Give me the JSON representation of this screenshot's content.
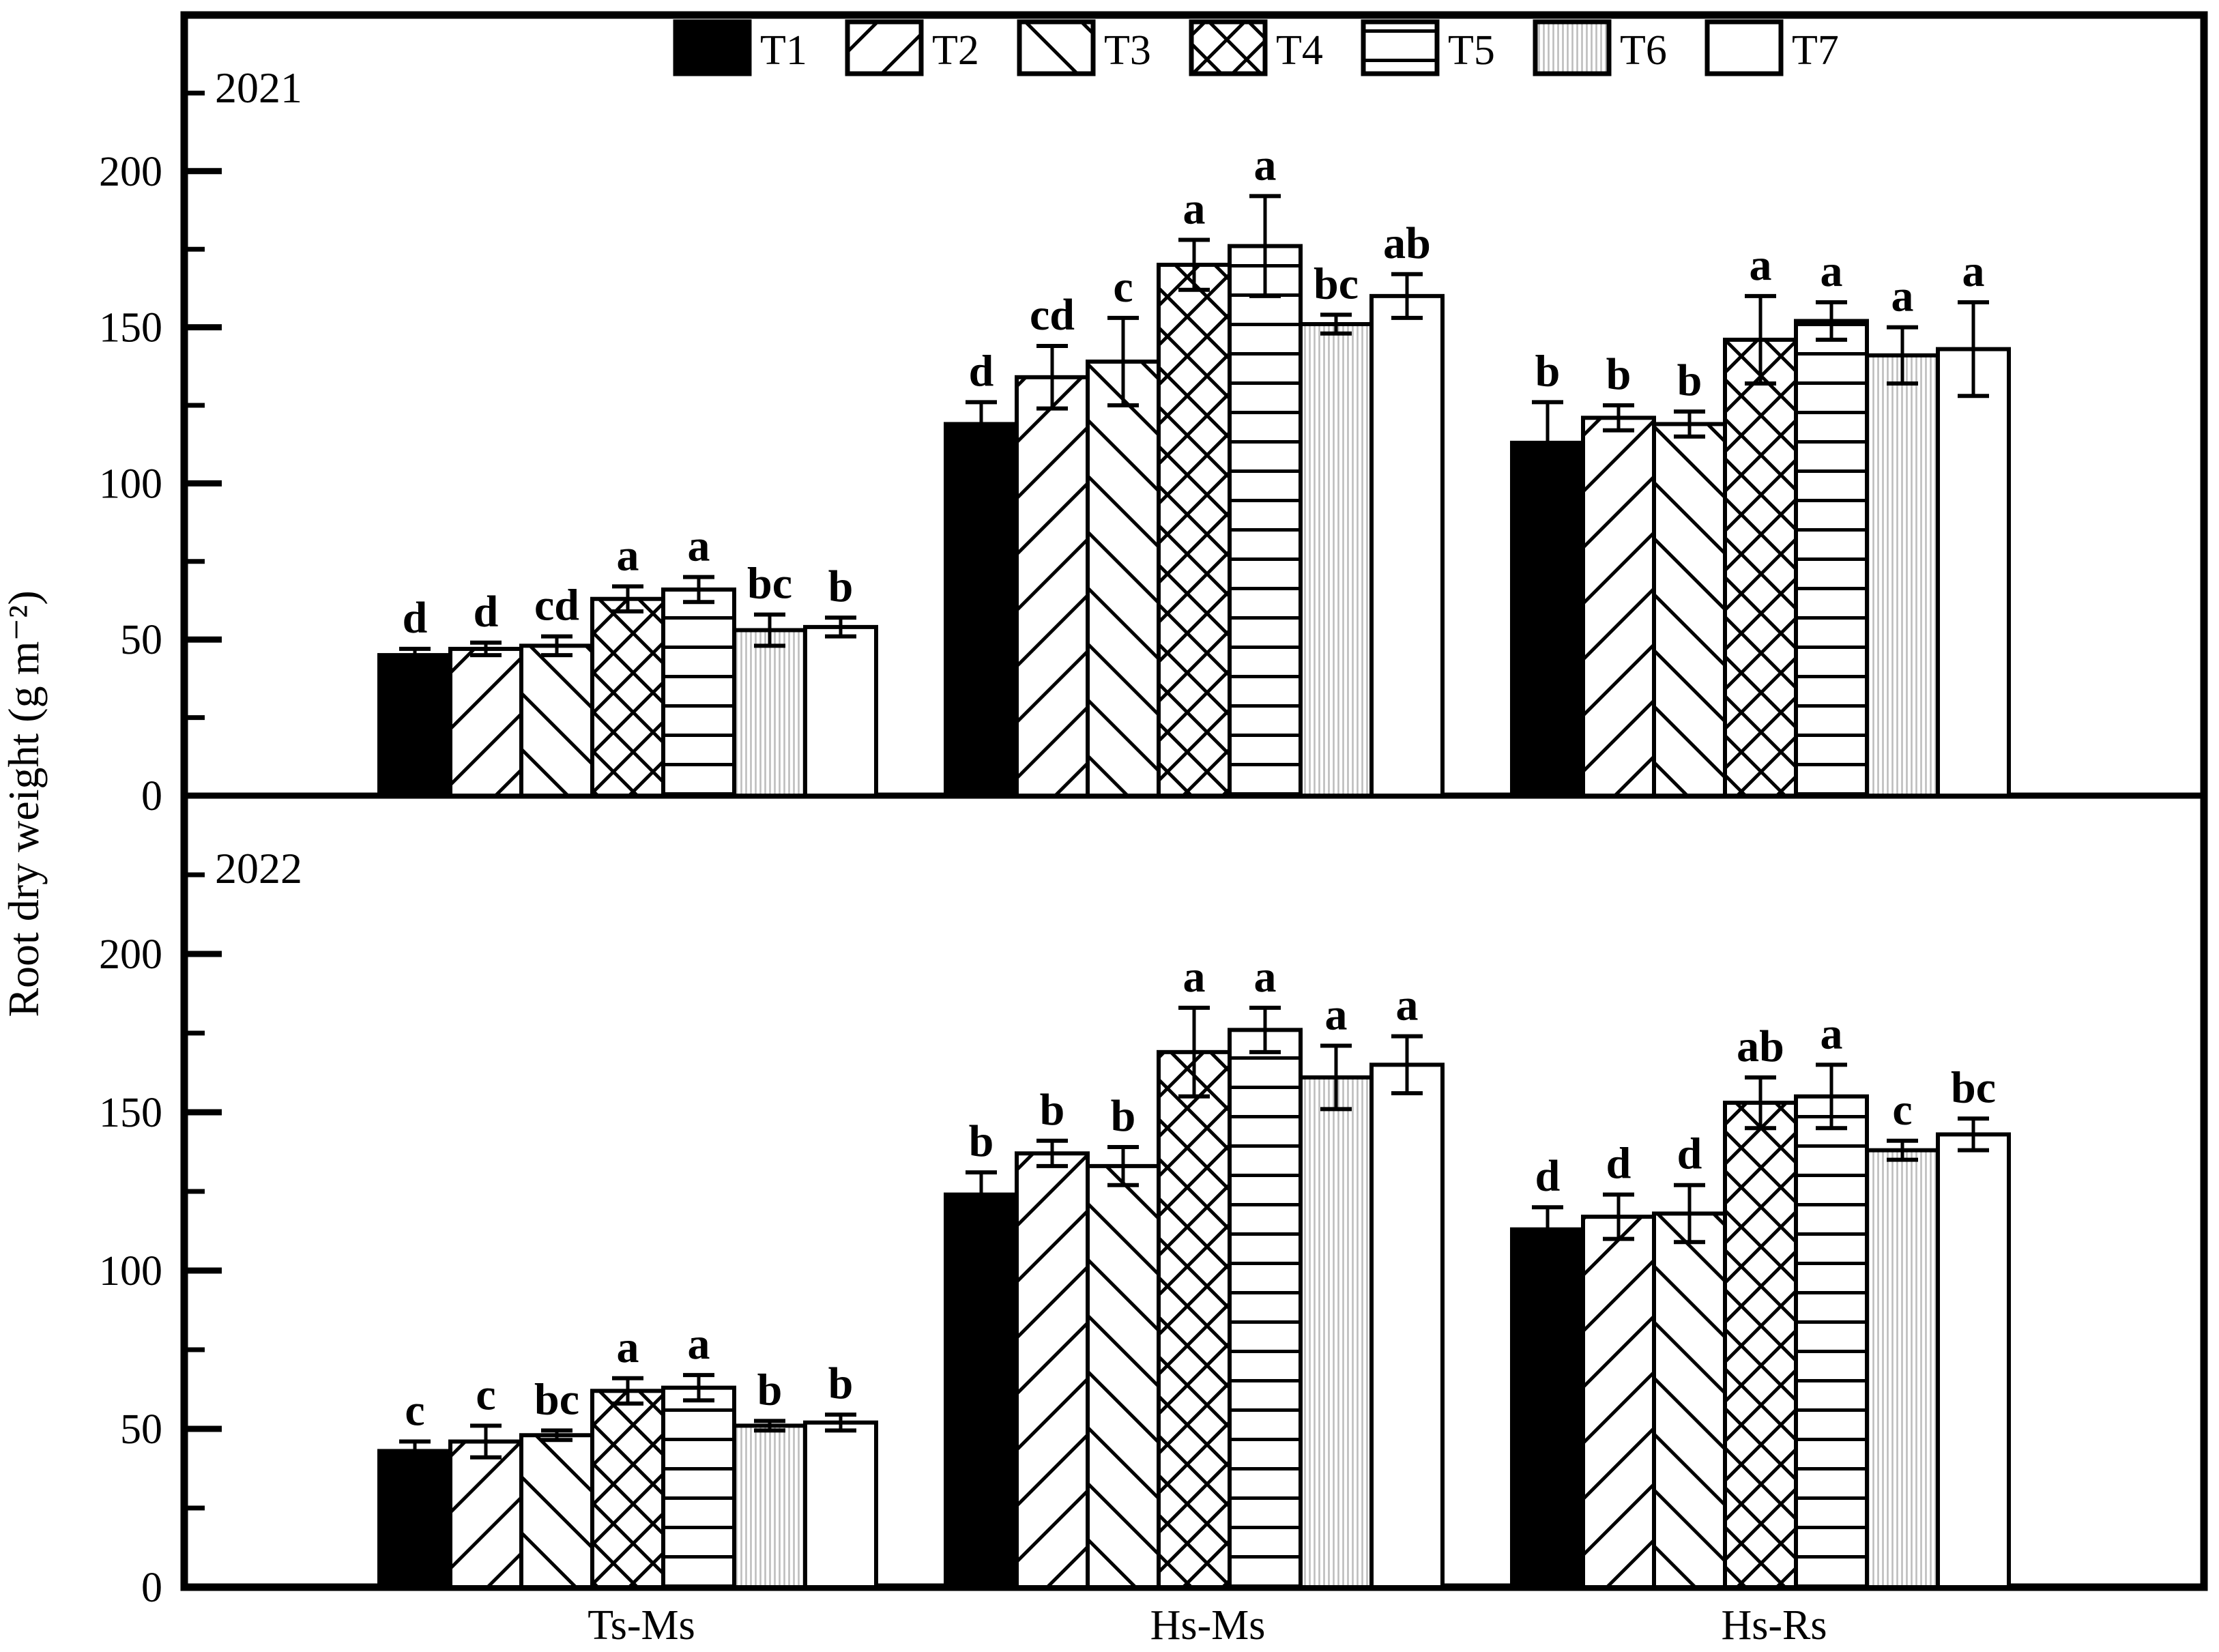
{
  "figure": {
    "ylabel": "Root dry weight (g m⁻²)",
    "panel_years": [
      "2021",
      "2022"
    ]
  },
  "chart_data": {
    "type": "bar",
    "title": "",
    "xlabel": "",
    "ylabel": "Root dry weight (g m⁻²)",
    "categories": [
      "Ts-Ms",
      "Hs-Ms",
      "Hs-Rs"
    ],
    "treatments": [
      "T1",
      "T2",
      "T3",
      "T4",
      "T5",
      "T6",
      "T7"
    ],
    "pattern_styles": [
      "solid-black",
      "diagonal-forward",
      "diagonal-backward",
      "crosshatch",
      "horizontal-lines",
      "fine-vertical-gray",
      "plain-white"
    ],
    "ylim": [
      0,
      250
    ],
    "yticks": [
      0,
      50,
      100,
      150,
      200
    ],
    "minor_tick_step": 25,
    "grid": false,
    "legend_position": "top-center",
    "error_bars": true,
    "colors": {
      "bar_edge": "#000000",
      "t6_hatch": "#bdbdbd",
      "background": "#ffffff"
    },
    "panels": [
      {
        "year": "2021",
        "series": [
          {
            "name": "T1",
            "values": [
              45,
              119,
              113
            ],
            "errors": [
              2,
              7,
              13
            ],
            "letters": [
              "d",
              "d",
              "b"
            ]
          },
          {
            "name": "T2",
            "values": [
              47,
              134,
              121
            ],
            "errors": [
              2,
              10,
              4
            ],
            "letters": [
              "d",
              "cd",
              "b"
            ]
          },
          {
            "name": "T3",
            "values": [
              48,
              139,
              119
            ],
            "errors": [
              3,
              14,
              4
            ],
            "letters": [
              "cd",
              "c",
              "b"
            ]
          },
          {
            "name": "T4",
            "values": [
              63,
              170,
              146
            ],
            "errors": [
              4,
              8,
              14
            ],
            "letters": [
              "a",
              "a",
              "a"
            ]
          },
          {
            "name": "T5",
            "values": [
              66,
              176,
              152
            ],
            "errors": [
              4,
              16,
              6
            ],
            "letters": [
              "a",
              "a",
              "a"
            ]
          },
          {
            "name": "T6",
            "values": [
              53,
              151,
              141
            ],
            "errors": [
              5,
              3,
              9
            ],
            "letters": [
              "bc",
              "bc",
              "a"
            ]
          },
          {
            "name": "T7",
            "values": [
              54,
              160,
              143
            ],
            "errors": [
              3,
              7,
              15
            ],
            "letters": [
              "b",
              "ab",
              "a"
            ]
          }
        ]
      },
      {
        "year": "2022",
        "series": [
          {
            "name": "T1",
            "values": [
              43,
              124,
              113
            ],
            "errors": [
              3,
              7,
              7
            ],
            "letters": [
              "c",
              "b",
              "d"
            ]
          },
          {
            "name": "T2",
            "values": [
              46,
              137,
              117
            ],
            "errors": [
              5,
              4,
              7
            ],
            "letters": [
              "c",
              "b",
              "d"
            ]
          },
          {
            "name": "T3",
            "values": [
              48,
              133,
              118
            ],
            "errors": [
              1.5,
              6,
              9
            ],
            "letters": [
              "bc",
              "b",
              "d"
            ]
          },
          {
            "name": "T4",
            "values": [
              62,
              169,
              153
            ],
            "errors": [
              4,
              14,
              8
            ],
            "letters": [
              "a",
              "a",
              "ab"
            ]
          },
          {
            "name": "T5",
            "values": [
              63,
              176,
              155
            ],
            "errors": [
              4,
              7,
              10
            ],
            "letters": [
              "a",
              "a",
              "a"
            ]
          },
          {
            "name": "T6",
            "values": [
              51,
              161,
              138
            ],
            "errors": [
              1.5,
              10,
              3
            ],
            "letters": [
              "b",
              "a",
              "c"
            ]
          },
          {
            "name": "T7",
            "values": [
              52,
              165,
              143
            ],
            "errors": [
              2.5,
              9,
              5
            ],
            "letters": [
              "b",
              "a",
              "bc"
            ]
          }
        ]
      }
    ]
  }
}
